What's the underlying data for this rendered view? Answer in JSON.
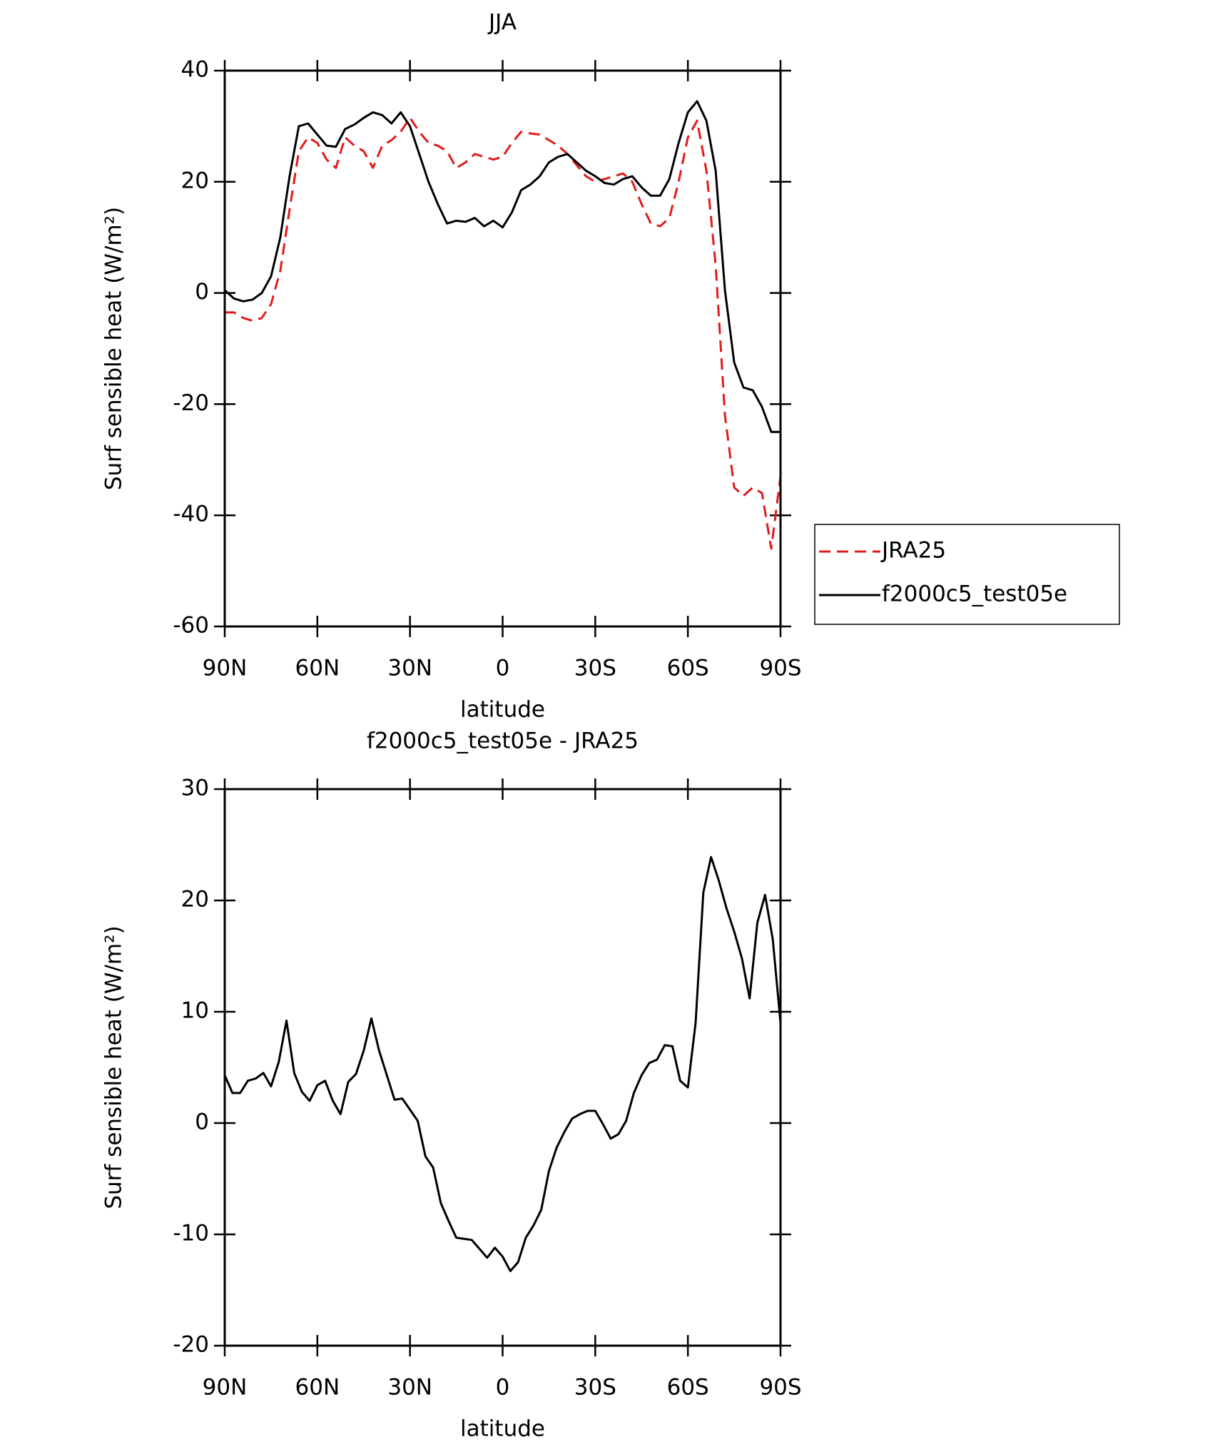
{
  "chart_data": [
    {
      "type": "line",
      "title": "JJA",
      "xlabel": "latitude",
      "ylabel": "Surf sensible heat (W/m²)",
      "x": [
        90,
        87,
        84,
        81,
        78,
        75,
        72,
        69,
        66,
        63,
        60,
        57,
        54,
        51,
        48,
        45,
        42,
        39,
        36,
        33,
        30,
        27,
        24,
        21,
        18,
        15,
        12,
        9,
        6,
        3,
        0,
        -3,
        -6,
        -9,
        -12,
        -15,
        -18,
        -21,
        -24,
        -27,
        -30,
        -33,
        -36,
        -39,
        -42,
        -45,
        -48,
        -51,
        -54,
        -57,
        -60,
        -63,
        -66,
        -69,
        -72,
        -75,
        -78,
        -81,
        -84,
        -87,
        -90
      ],
      "series": [
        {
          "name": "JRA25",
          "color": "#e31a1c",
          "dash": true,
          "values": [
            -3.5,
            -3.5,
            -4.5,
            -5,
            -4.5,
            -2,
            4,
            15,
            25.5,
            28,
            27,
            24,
            22.5,
            28,
            26.5,
            25.5,
            22.5,
            26.5,
            27.5,
            29,
            31.5,
            29,
            27,
            26.5,
            25.5,
            22.5,
            23.5,
            25,
            24.5,
            24,
            24.5,
            27,
            29,
            28.7,
            28.5,
            27.5,
            26.5,
            25,
            23,
            21,
            20,
            20.5,
            21,
            21.5,
            20,
            16,
            12.5,
            12,
            13.5,
            20,
            28,
            31,
            22,
            5,
            -22,
            -35,
            -36.5,
            -35,
            -36,
            -46,
            -33
          ]
        },
        {
          "name": "f2000c5_test05e",
          "color": "#000000",
          "dash": false,
          "values": [
            0.5,
            -1,
            -1.5,
            -1.2,
            0,
            3,
            10,
            21,
            30,
            30.5,
            28.5,
            26.5,
            26.3,
            29.5,
            30.3,
            31.5,
            32.5,
            32,
            30.5,
            32.5,
            30,
            25,
            20,
            16,
            12.5,
            13,
            12.8,
            13.5,
            12,
            13,
            11.8,
            14.5,
            18.5,
            19.5,
            21,
            23.5,
            24.5,
            25,
            23.5,
            22,
            21,
            19.8,
            19.5,
            20.5,
            21,
            19,
            17.5,
            17.5,
            20.5,
            27,
            32.5,
            34.5,
            31,
            22,
            0.5,
            -12.5,
            -17,
            -17.5,
            -20.5,
            -25,
            -25
          ]
        }
      ],
      "xlim": [
        90,
        -90
      ],
      "xticks": [
        {
          "value": 90,
          "label": "90N"
        },
        {
          "value": 60,
          "label": "60N"
        },
        {
          "value": 30,
          "label": "30N"
        },
        0,
        {
          "value": -30,
          "label": "30S"
        },
        {
          "value": -60,
          "label": "60S"
        },
        {
          "value": -90,
          "label": "90S"
        }
      ],
      "ylim": [
        -60,
        40
      ],
      "yticks": [
        -60,
        -40,
        -20,
        0,
        20,
        40
      ],
      "legend": "right"
    },
    {
      "type": "line",
      "title": "f2000c5_test05e - JRA25",
      "xlabel": "latitude",
      "ylabel": "Surf sensible heat (W/m²)",
      "x": [
        90,
        87.5,
        85,
        82.5,
        80,
        77.5,
        75,
        72.5,
        70,
        67.5,
        65,
        62.5,
        60,
        57.5,
        55,
        52.5,
        50,
        47.5,
        45,
        42.5,
        40,
        37.5,
        35,
        32.5,
        30,
        27.5,
        25,
        22.5,
        20,
        17.5,
        15,
        12.5,
        10,
        7.5,
        5,
        2.5,
        0,
        -2.5,
        -5,
        -7.5,
        -10,
        -12.5,
        -15,
        -17.5,
        -20,
        -22.5,
        -25,
        -27.5,
        -30,
        -32.5,
        -35,
        -37.5,
        -40,
        -42.5,
        -45,
        -47.5,
        -50,
        -52.5,
        -55,
        -57.5,
        -60,
        -62.5,
        -65,
        -67.5,
        -70,
        -72.5,
        -75,
        -77.5,
        -80,
        -82.5,
        -85,
        -87.5,
        -90
      ],
      "series": [
        {
          "color": "#000000",
          "dash": false,
          "values": [
            4.3,
            2.7,
            2.7,
            3.8,
            4,
            4.5,
            3.3,
            5.5,
            9.2,
            4.5,
            2.8,
            2,
            3.4,
            3.8,
            2,
            0.8,
            3.7,
            4.4,
            6.5,
            9.4,
            6.5,
            4.3,
            2.1,
            2.2,
            1.2,
            0.2,
            -3,
            -4,
            -7.2,
            -8.8,
            -10.3,
            -10.4,
            -10.5,
            -11.3,
            -12.1,
            -11.2,
            -12,
            -13.3,
            -12.5,
            -10.3,
            -9.2,
            -7.8,
            -4.3,
            -2.2,
            -0.8,
            0.4,
            0.8,
            1.1,
            1.1,
            -0.1,
            -1.4,
            -1,
            0.2,
            2.7,
            4.3,
            5.4,
            5.7,
            7,
            6.9,
            3.8,
            3.2,
            9,
            20.7,
            23.9,
            21.8,
            19.3,
            17.2,
            14.8,
            11.2,
            18,
            20.5,
            16.5,
            9
          ]
        }
      ],
      "xlim": [
        90,
        -90
      ],
      "xticks": [
        {
          "value": 90,
          "label": "90N"
        },
        {
          "value": 60,
          "label": "60N"
        },
        {
          "value": 30,
          "label": "30N"
        },
        0,
        {
          "value": -30,
          "label": "30S"
        },
        {
          "value": -60,
          "label": "60S"
        },
        {
          "value": -90,
          "label": "90S"
        }
      ],
      "ylim": [
        -20,
        30
      ],
      "yticks": [
        -20,
        -10,
        0,
        10,
        20,
        30
      ]
    }
  ]
}
